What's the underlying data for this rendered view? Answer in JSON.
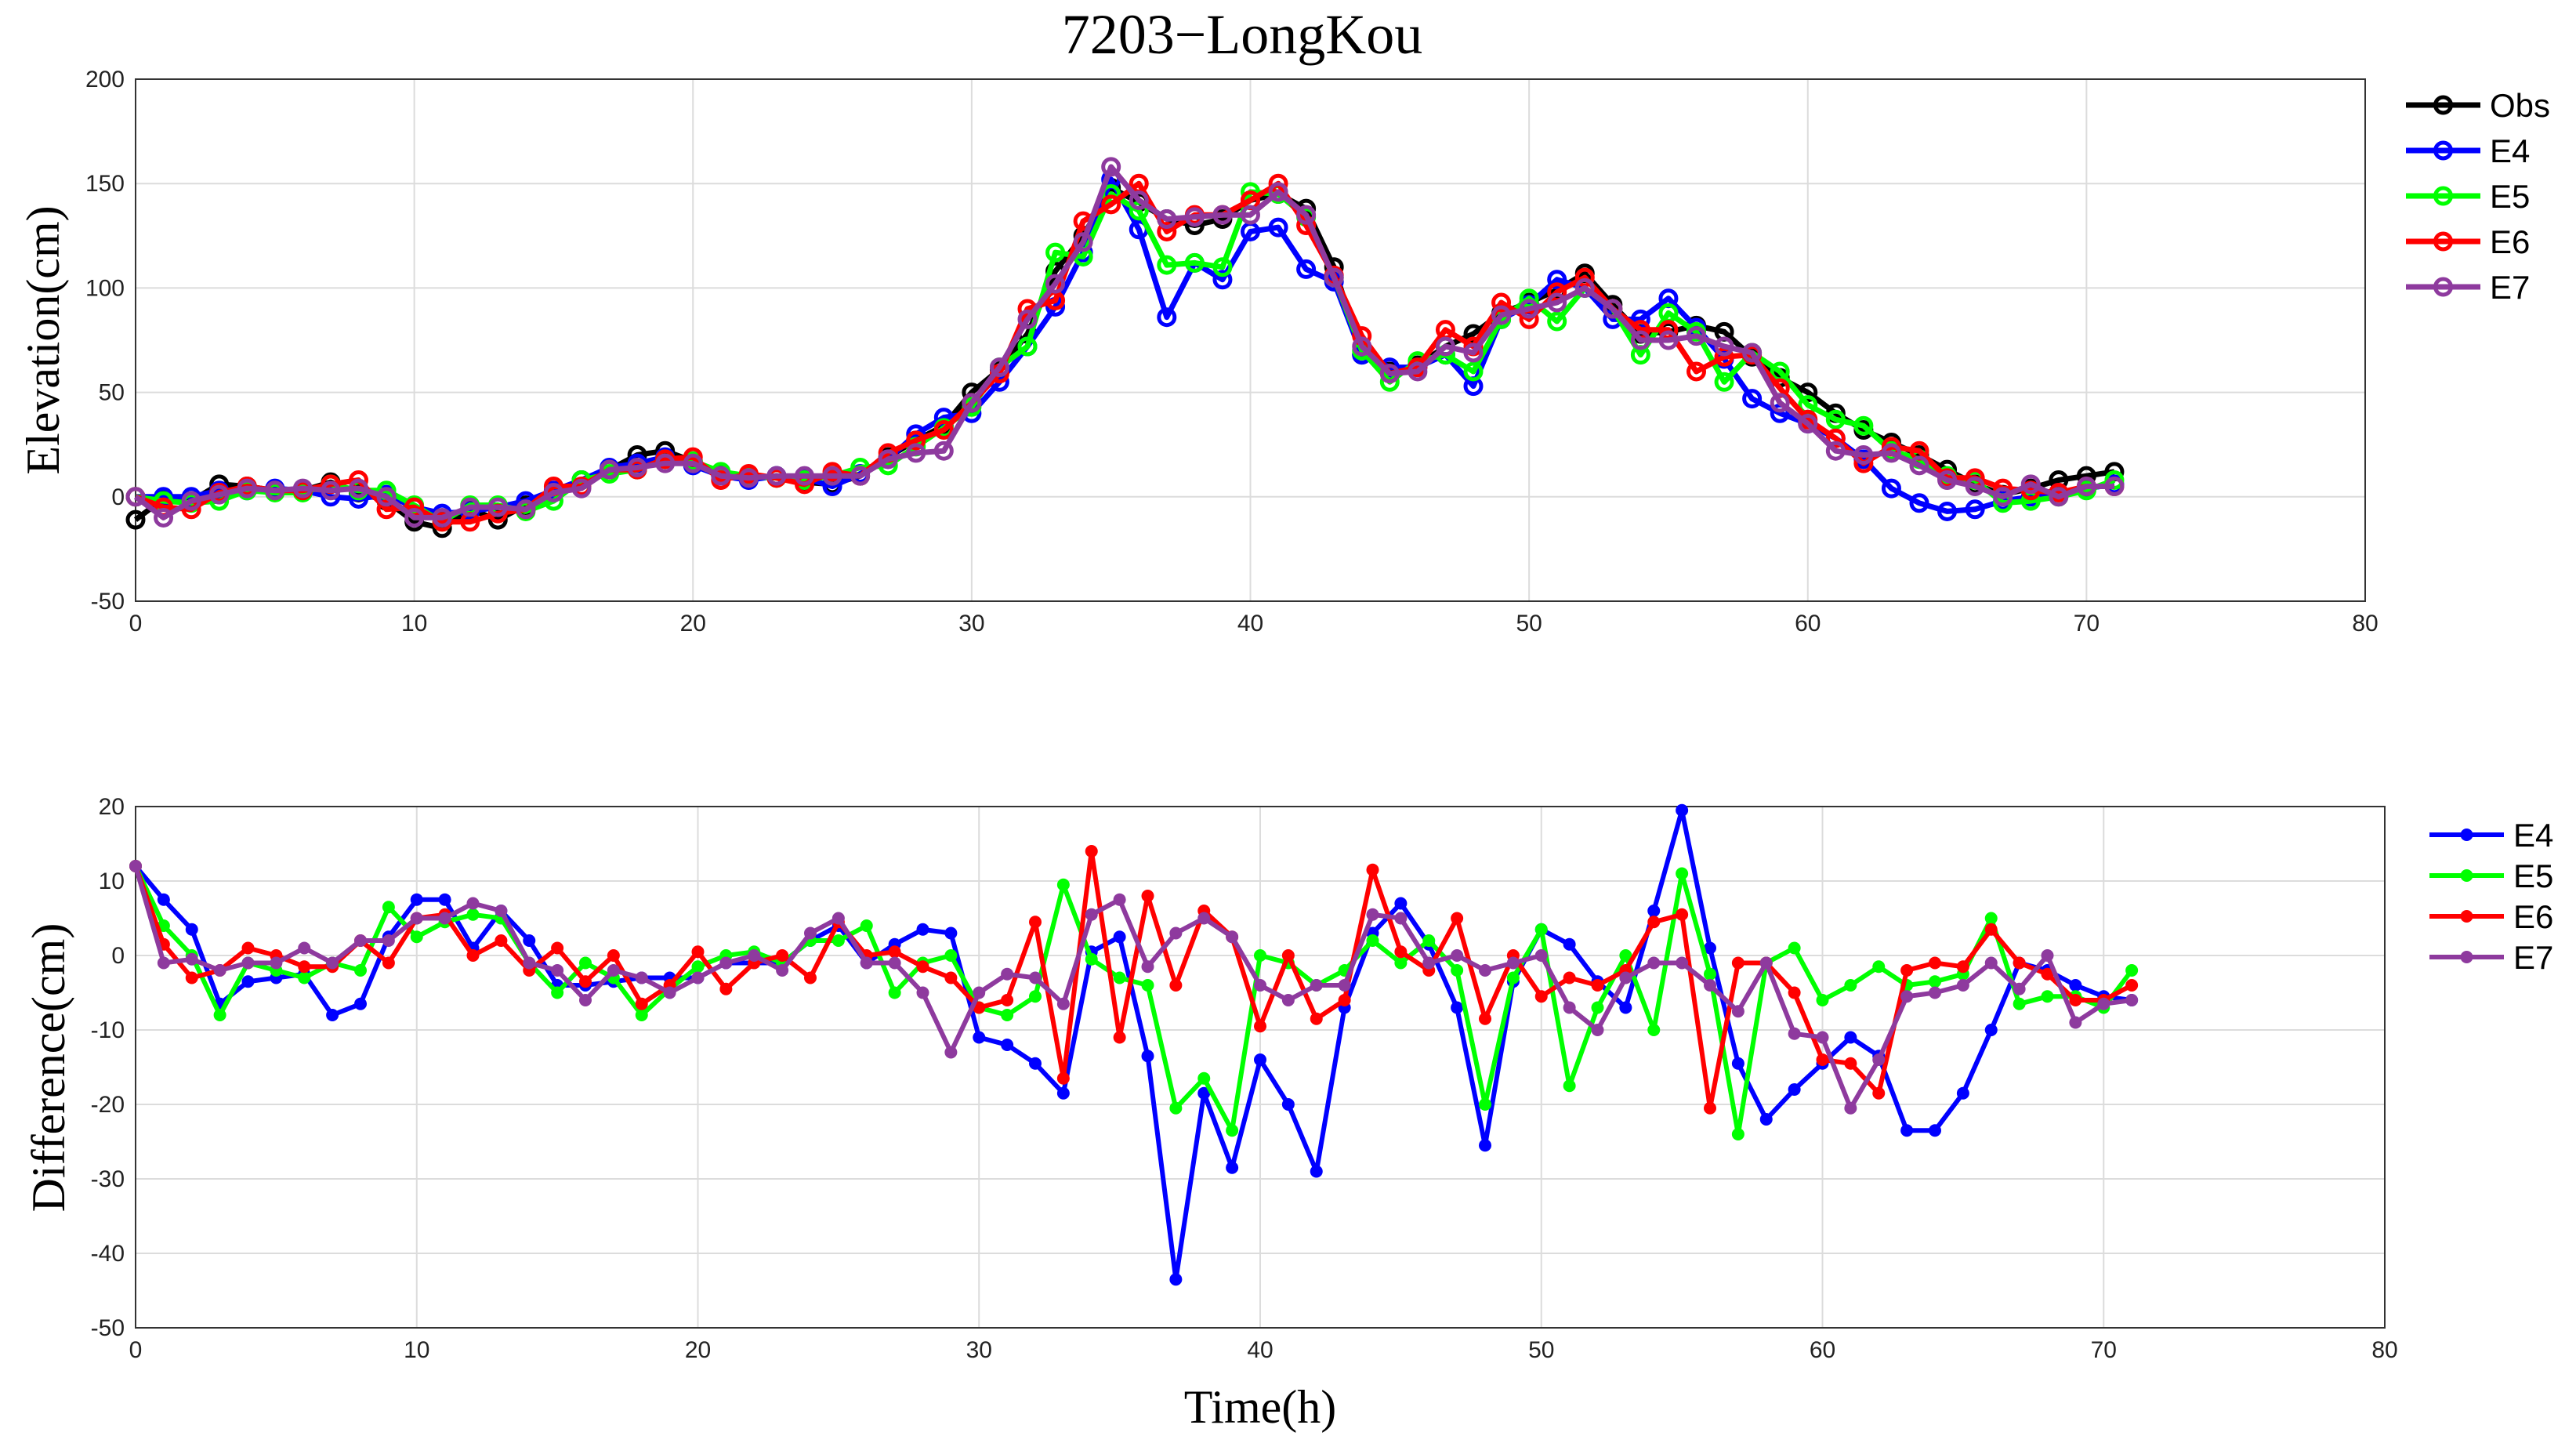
{
  "chart_data": [
    {
      "type": "line",
      "title": "7203−LongKou",
      "xlabel": "",
      "ylabel": "Elevation(cm)",
      "xlim": [
        0,
        80
      ],
      "ylim": [
        -50,
        200
      ],
      "xticks": [
        "0",
        "10",
        "20",
        "30",
        "40",
        "50",
        "60",
        "70",
        "80"
      ],
      "yticks": [
        "-50",
        "0",
        "50",
        "100",
        "150",
        "200"
      ],
      "grid": true,
      "legend_position": "outside-right-top",
      "x": [
        0,
        1,
        2,
        3,
        4,
        5,
        6,
        7,
        8,
        9,
        10,
        11,
        12,
        13,
        14,
        15,
        16,
        17,
        18,
        19,
        20,
        21,
        22,
        23,
        24,
        25,
        26,
        27,
        28,
        29,
        30,
        31,
        32,
        33,
        34,
        35,
        36,
        37,
        38,
        39,
        40,
        41,
        42,
        43,
        44,
        45,
        46,
        47,
        48,
        49,
        50,
        51,
        52,
        53,
        54,
        55,
        56,
        57,
        58,
        59,
        60,
        61,
        62,
        63,
        64,
        65,
        66,
        67,
        68,
        69,
        70,
        71
      ],
      "series": [
        {
          "name": "Obs",
          "color": "#000000",
          "values": [
            -11,
            -1,
            -2,
            6,
            5,
            3,
            3,
            7,
            2,
            -2,
            -12,
            -15,
            -6,
            -11,
            -4,
            2,
            8,
            13,
            20,
            22,
            17,
            11,
            9,
            10,
            7,
            6,
            10,
            19,
            27,
            34,
            50,
            61,
            78,
            108,
            125,
            148,
            141,
            133,
            130,
            133,
            142,
            145,
            138,
            110,
            68,
            60,
            63,
            72,
            78,
            88,
            93,
            99,
            107,
            92,
            78,
            79,
            82,
            79,
            67,
            57,
            50,
            40,
            32,
            26,
            20,
            13,
            6,
            1,
            4,
            8,
            10,
            12
          ]
        },
        {
          "name": "E4",
          "color": "#0000FF",
          "values": [
            0,
            0,
            0,
            3,
            3,
            4,
            3,
            0,
            -1,
            1,
            -5,
            -8,
            -7,
            -5,
            -2,
            3,
            8,
            14,
            16,
            19,
            15,
            10,
            8,
            10,
            9,
            5,
            11,
            18,
            30,
            38,
            40,
            55,
            72,
            91,
            117,
            152,
            128,
            86,
            112,
            104,
            127,
            129,
            109,
            103,
            68,
            62,
            62,
            68,
            53,
            85,
            92,
            104,
            100,
            85,
            85,
            95,
            81,
            66,
            47,
            40,
            35,
            28,
            18,
            4,
            -3,
            -7,
            -6,
            -2,
            0,
            2,
            4,
            6
          ]
        },
        {
          "name": "E5",
          "color": "#00FF00",
          "values": [
            0,
            -2,
            -3,
            -2,
            3,
            2,
            2,
            6,
            3,
            3,
            -4,
            -12,
            -4,
            -4,
            -7,
            -2,
            8,
            11,
            13,
            18,
            17,
            12,
            10,
            9,
            8,
            10,
            14,
            15,
            24,
            33,
            43,
            62,
            72,
            117,
            115,
            145,
            137,
            111,
            112,
            110,
            146,
            145,
            134,
            105,
            70,
            55,
            65,
            68,
            60,
            85,
            95,
            84,
            100,
            90,
            68,
            88,
            79,
            55,
            69,
            60,
            44,
            37,
            34,
            22,
            18,
            10,
            8,
            -3,
            -2,
            0,
            3,
            8
          ]
        },
        {
          "name": "E6",
          "color": "#FF0000",
          "values": [
            0,
            -5,
            -6,
            2,
            5,
            3,
            3,
            6,
            8,
            -6,
            -5,
            -12,
            -12,
            -8,
            -6,
            5,
            5,
            13,
            13,
            18,
            19,
            8,
            11,
            9,
            6,
            12,
            10,
            21,
            27,
            32,
            45,
            59,
            90,
            94,
            132,
            140,
            150,
            127,
            135,
            135,
            142,
            150,
            130,
            106,
            77,
            59,
            62,
            80,
            72,
            93,
            85,
            98,
            105,
            90,
            80,
            80,
            60,
            67,
            68,
            52,
            37,
            28,
            16,
            24,
            22,
            9,
            9,
            4,
            3,
            2,
            5,
            5
          ]
        },
        {
          "name": "E7",
          "color": "#8E3A9E",
          "values": [
            0,
            -10,
            -2,
            1,
            4,
            3,
            4,
            3,
            4,
            0,
            -10,
            -10,
            -5,
            -5,
            -6,
            2,
            4,
            13,
            14,
            16,
            16,
            10,
            9,
            10,
            10,
            10,
            10,
            18,
            21,
            22,
            45,
            62,
            85,
            102,
            122,
            158,
            142,
            133,
            134,
            135,
            135,
            146,
            135,
            105,
            72,
            59,
            60,
            72,
            69,
            87,
            90,
            93,
            100,
            90,
            75,
            75,
            77,
            72,
            69,
            45,
            35,
            22,
            20,
            21,
            15,
            8,
            5,
            0,
            6,
            0,
            5,
            5
          ]
        }
      ]
    },
    {
      "type": "line",
      "title": "",
      "xlabel": "Time(h)",
      "ylabel": "Difference(cm)",
      "xlim": [
        0,
        80
      ],
      "ylim": [
        -50,
        20
      ],
      "xticks": [
        "0",
        "10",
        "20",
        "30",
        "40",
        "50",
        "60",
        "70",
        "80"
      ],
      "yticks": [
        "-50",
        "-40",
        "-30",
        "-20",
        "-10",
        "0",
        "10",
        "20"
      ],
      "grid": true,
      "legend_position": "outside-right-top",
      "x": [
        0,
        1,
        2,
        3,
        4,
        5,
        6,
        7,
        8,
        9,
        10,
        11,
        12,
        13,
        14,
        15,
        16,
        17,
        18,
        19,
        20,
        21,
        22,
        23,
        24,
        25,
        26,
        27,
        28,
        29,
        30,
        31,
        32,
        33,
        34,
        35,
        36,
        37,
        38,
        39,
        40,
        41,
        42,
        43,
        44,
        45,
        46,
        47,
        48,
        49,
        50,
        51,
        52,
        53,
        54,
        55,
        56,
        57,
        58,
        59,
        60,
        61,
        62,
        63,
        64,
        65,
        66,
        67,
        68,
        69,
        70,
        71
      ],
      "series": [
        {
          "name": "E4",
          "color": "#0000FF",
          "values": [
            12,
            7.5,
            3.5,
            -6.5,
            -3.5,
            -3,
            -2.5,
            -8,
            -6.5,
            2.5,
            7.5,
            7.5,
            1,
            6,
            2,
            -4,
            -4,
            -3.5,
            -3,
            -3,
            -3,
            -1,
            -1,
            -1,
            2,
            4,
            -1,
            1.5,
            3.5,
            3,
            -11,
            -12,
            -14.5,
            -18.5,
            0.5,
            2.5,
            -13.5,
            -43.5,
            -18.5,
            -28.5,
            -14,
            -20,
            -29,
            -7,
            3,
            7,
            1.5,
            -7,
            -25.5,
            -3.5,
            3.5,
            1.5,
            -3.5,
            -7,
            6,
            19.5,
            1,
            -14.5,
            -22,
            -18,
            -14.5,
            -11,
            -13.5,
            -23.5,
            -23.5,
            -18.5,
            -10,
            -1,
            -2,
            -4,
            -5.5,
            -6
          ]
        },
        {
          "name": "E5",
          "color": "#00FF00",
          "values": [
            12,
            4,
            0,
            -8,
            -1,
            -2,
            -3,
            -1,
            -2,
            6.5,
            2.5,
            4.5,
            5.5,
            5,
            -1,
            -5,
            -1,
            -3,
            -8,
            -4.5,
            -1.5,
            0,
            0.5,
            -1,
            2,
            2,
            4,
            -5,
            -1,
            0,
            -7,
            -8,
            -5.5,
            9.5,
            -0.5,
            -3,
            -4,
            -20.5,
            -16.5,
            -23.5,
            0,
            -1,
            -4,
            -2,
            2,
            -1,
            2,
            -2,
            -20,
            -3,
            3.5,
            -17.5,
            -7,
            0,
            -10,
            11,
            -2.5,
            -24,
            -1,
            1,
            -6,
            -4,
            -1.5,
            -4,
            -3.5,
            -2.5,
            5,
            -6.5,
            -5.5,
            -5.5,
            -7,
            -2
          ]
        },
        {
          "name": "E6",
          "color": "#FF0000",
          "values": [
            12,
            1.5,
            -3,
            -2,
            1,
            0,
            -1.5,
            -1.5,
            2,
            -1,
            5,
            5.5,
            0,
            2,
            -2,
            1,
            -3.5,
            0,
            -6.5,
            -4,
            0.5,
            -4.5,
            -1,
            0,
            -3,
            4.5,
            0,
            0.5,
            -1.5,
            -3,
            -7,
            -6,
            4.5,
            -16.5,
            14,
            -11,
            8,
            -4,
            6,
            2.5,
            -9.5,
            0,
            -8.5,
            -6,
            11.5,
            0.5,
            -2,
            5,
            -8.5,
            0,
            -5.5,
            -3,
            -4,
            -2,
            4.5,
            5.5,
            -20.5,
            -1,
            -1,
            -5,
            -14,
            -14.5,
            -18.5,
            -2,
            -1,
            -1.5,
            3.5,
            -1,
            -2.5,
            -6,
            -6,
            -4
          ]
        },
        {
          "name": "E7",
          "color": "#8E3A9E",
          "values": [
            12,
            -1,
            -0.5,
            -2,
            -1,
            -1,
            1,
            -1,
            2,
            2,
            5,
            5,
            7,
            6,
            -1,
            -2,
            -6,
            -2,
            -3,
            -5,
            -3,
            -1,
            0,
            -2,
            3,
            5,
            -1,
            -1,
            -5,
            -13,
            -5,
            -2.5,
            -3,
            -6.5,
            5.5,
            7.5,
            -1.5,
            3,
            5,
            2.5,
            -4,
            -6,
            -4,
            -4,
            5.5,
            5,
            -1,
            0,
            -2,
            -1,
            0,
            -7,
            -10,
            -3,
            -1,
            -1,
            -4,
            -7.5,
            -1,
            -10.5,
            -11,
            -20.5,
            -14,
            -5.5,
            -5,
            -4,
            -1,
            -4.5,
            0,
            -9,
            -6.5,
            -6
          ]
        }
      ]
    }
  ]
}
